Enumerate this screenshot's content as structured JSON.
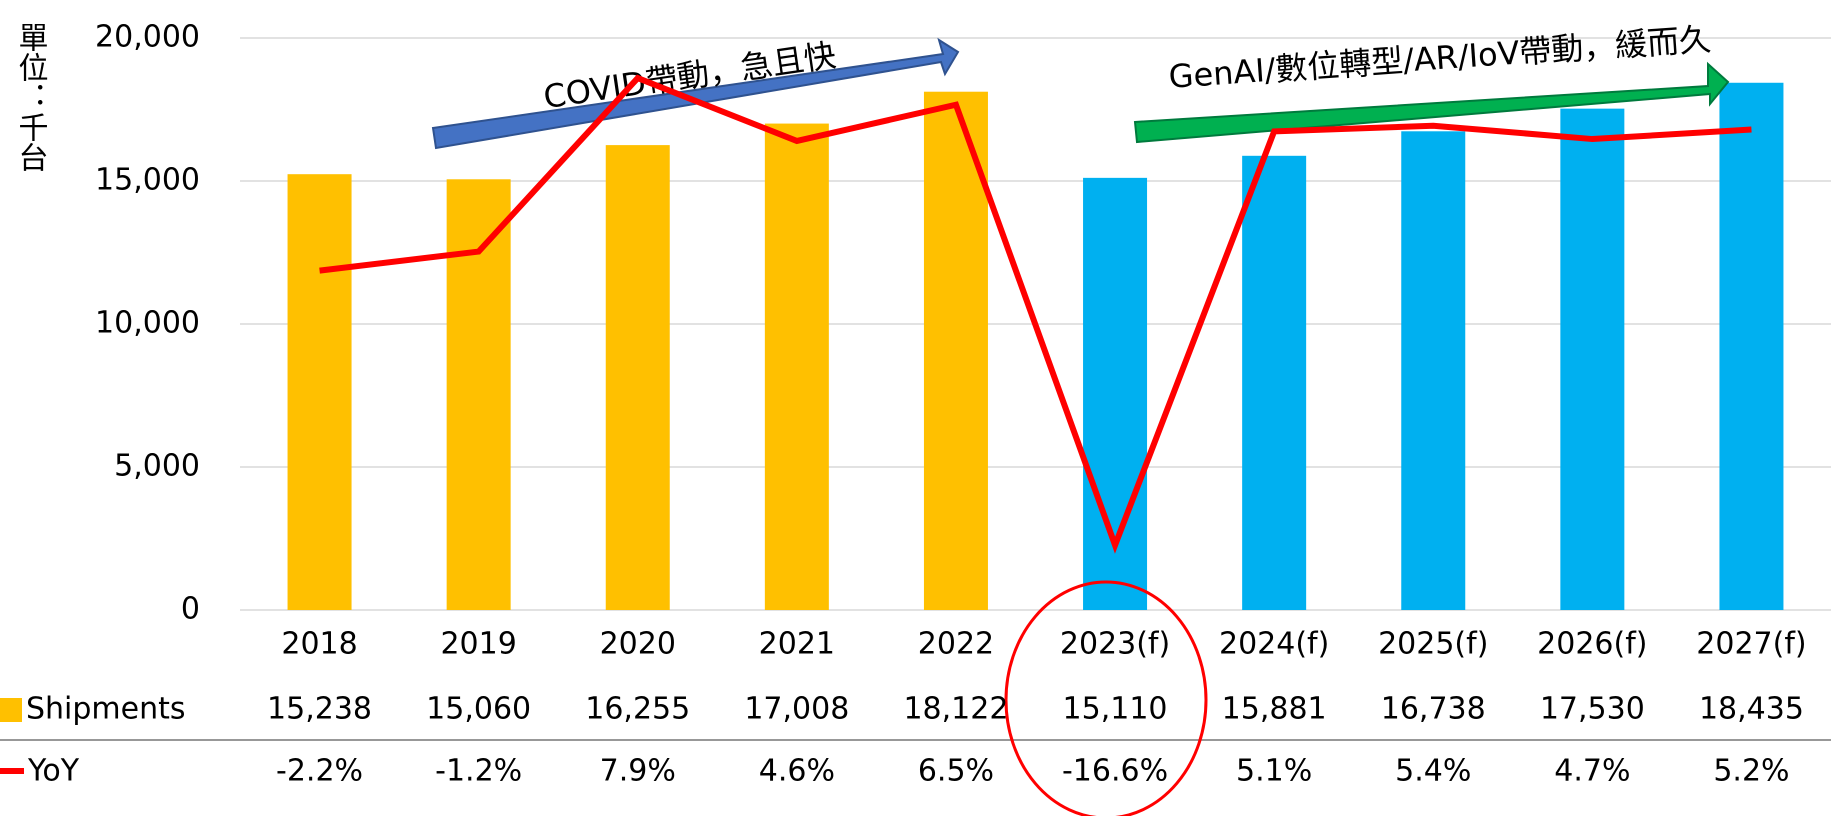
{
  "chart_data": {
    "type": "bar",
    "y_label": "單位：千台",
    "categories": [
      "2018",
      "2019",
      "2020",
      "2021",
      "2022",
      "2023(f)",
      "2024(f)",
      "2025(f)",
      "2026(f)",
      "2027(f)"
    ],
    "series": [
      {
        "name": "Shipments",
        "colors": [
          "#ffc000",
          "#ffc000",
          "#ffc000",
          "#ffc000",
          "#ffc000",
          "#00b0f0",
          "#00b0f0",
          "#00b0f0",
          "#00b0f0",
          "#00b0f0"
        ],
        "values": [
          15238,
          15060,
          16255,
          17008,
          18122,
          15110,
          15881,
          16738,
          17530,
          18435
        ],
        "value_labels": [
          "15,238",
          "15,060",
          "16,255",
          "17,008",
          "18,122",
          "15,110",
          "15,881",
          "16,738",
          "17,530",
          "18,435"
        ]
      },
      {
        "name": "YoY",
        "color": "#ff0000",
        "axis": "y2",
        "values": [
          -2.2,
          -1.2,
          7.9,
          4.6,
          6.5,
          -16.6,
          5.1,
          5.4,
          4.7,
          5.2
        ],
        "value_labels": [
          "-2.2%",
          "-1.2%",
          "7.9%",
          "4.6%",
          "6.5%",
          "-16.6%",
          "5.1%",
          "5.4%",
          "4.7%",
          "5.2%"
        ]
      }
    ],
    "ylim": [
      0,
      20000
    ],
    "yticks": [
      0,
      {
        "value": 5000,
        "label": "5,000"
      },
      {
        "value": 10000,
        "label": "10,000"
      },
      {
        "value": 15000,
        "label": "15,000"
      },
      {
        "value": 20000,
        "label": "20,000"
      }
    ],
    "y2lim": [
      -20,
      10
    ],
    "grid": true,
    "annotations": [
      "COVID帶動，急且快",
      "GenAI/數位轉型/AR/IoV帶動，緩而久"
    ]
  }
}
